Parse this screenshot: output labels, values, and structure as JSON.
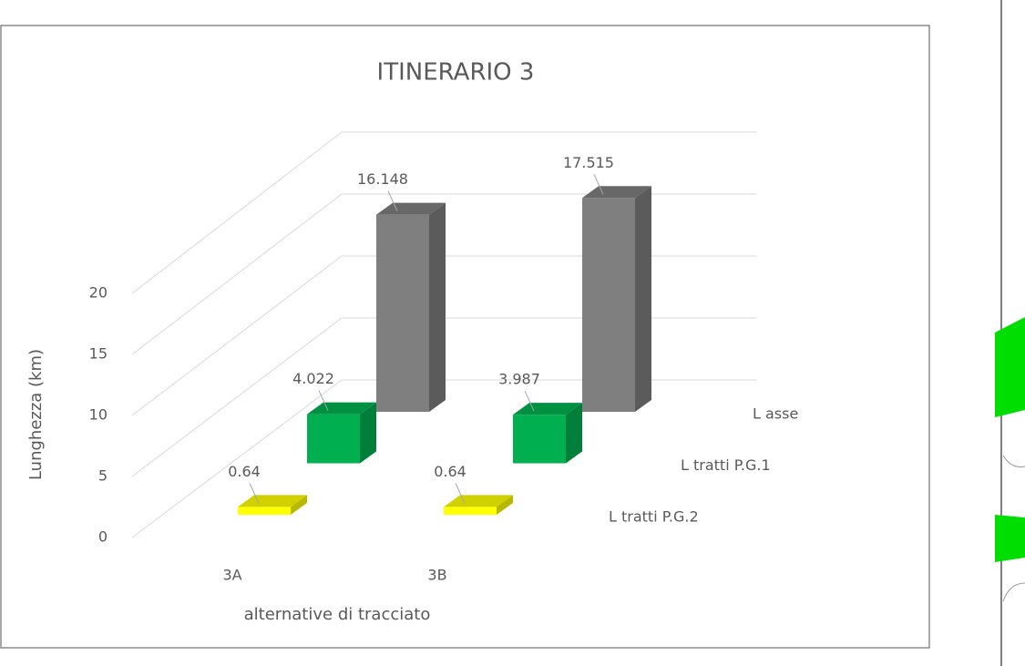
{
  "chart_data": {
    "type": "bar3d",
    "title": "ITINERARIO 3",
    "x_label": "alternative di tracciato",
    "y_label": "Lunghezza (km)",
    "categories": [
      "3A",
      "3B"
    ],
    "series": [
      {
        "name": "L tratti P.G.2",
        "color": "#ffff00",
        "values": [
          0.64,
          0.64
        ]
      },
      {
        "name": "L tratti P.G.1",
        "color": "#00b050",
        "values": [
          4.022,
          3.987
        ]
      },
      {
        "name": "L asse",
        "color": "#7f7f7f",
        "values": [
          16.148,
          17.515
        ]
      }
    ],
    "ylim": [
      0,
      20
    ],
    "yticks": [
      0,
      5,
      10,
      15,
      20
    ],
    "grid": true
  }
}
